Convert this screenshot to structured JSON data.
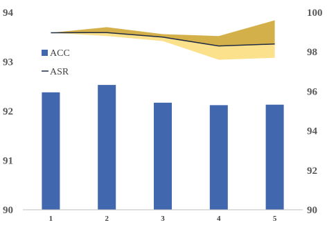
{
  "chart_data": {
    "type": "bar",
    "categories": [
      "1",
      "2",
      "3",
      "4",
      "5"
    ],
    "series": [
      {
        "name": "ACC",
        "type": "bar",
        "axis": "left",
        "values": [
          92.38,
          92.53,
          92.17,
          92.12,
          92.13
        ],
        "color": "#4167AE"
      },
      {
        "name": "ASR",
        "type": "line",
        "axis": "right",
        "values": [
          98.97,
          98.98,
          98.75,
          98.3,
          98.4
        ],
        "upper": [
          98.97,
          99.25,
          98.9,
          98.8,
          99.6
        ],
        "lower": [
          98.97,
          98.8,
          98.55,
          97.6,
          97.7
        ],
        "color": "#1F2A44",
        "band_upper_color": "#D4B04A",
        "band_lower_color": "#FBE18C"
      }
    ],
    "y_left": {
      "ylim": [
        90,
        94
      ],
      "ticks": [
        "90",
        "91",
        "92",
        "93",
        "94"
      ]
    },
    "y_right": {
      "ylim": [
        90,
        100
      ],
      "ticks": [
        "90",
        "92",
        "94",
        "96",
        "98",
        "100"
      ]
    },
    "legend": {
      "placement": "inside-left"
    },
    "grid": false
  }
}
